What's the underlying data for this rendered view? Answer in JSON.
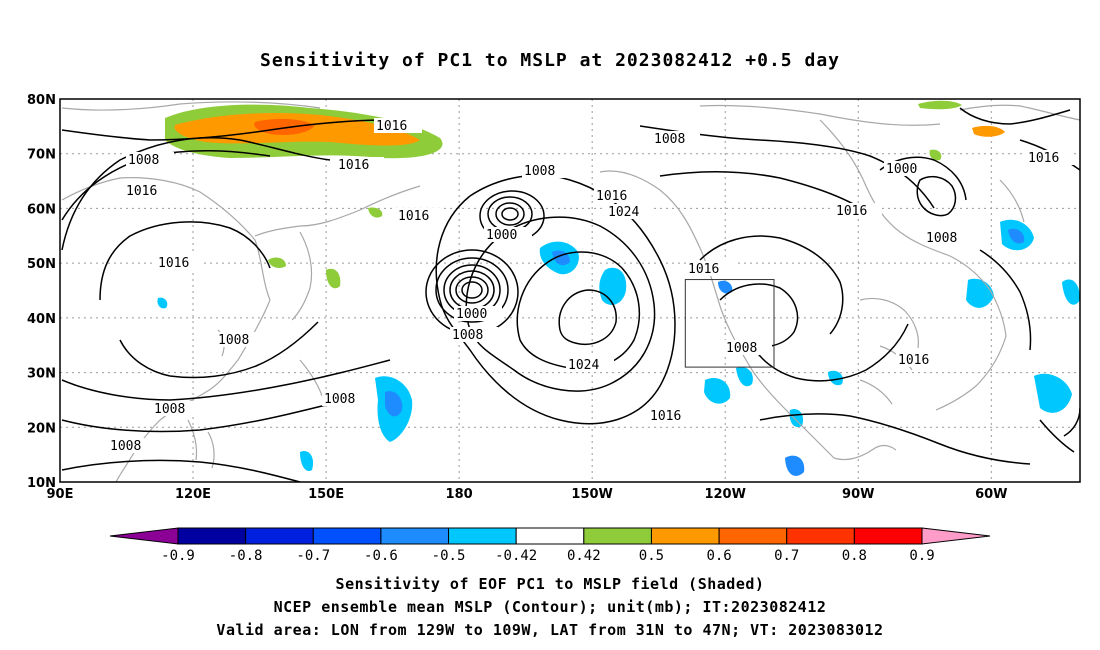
{
  "title": "Sensitivity of PC1 to MSLP at 2023082412 +0.5 day",
  "map": {
    "lat_labels": [
      "80N",
      "70N",
      "60N",
      "50N",
      "40N",
      "30N",
      "20N",
      "10N"
    ],
    "lon_labels": [
      "90E",
      "120E",
      "150E",
      "180",
      "150W",
      "120W",
      "90W",
      "60W"
    ],
    "colors": {
      "contour": "#000000",
      "coast": "#a8a8a8",
      "grid": "#9a9a9a",
      "neg_light": "#00c8ff",
      "neg_mid": "#1e8cff",
      "pos_green": "#8fcc3a",
      "pos_orange": "#ff9900",
      "pos_dark_orange": "#ff6600"
    },
    "contour_labels": {
      "a": "1016",
      "b": "1008",
      "c": "1016",
      "d": "1016",
      "e": "1008",
      "f": "1016",
      "g": "1024",
      "h": "1008",
      "i": "1000",
      "j": "1016",
      "k": "1000",
      "l": "1016",
      "m": "1016",
      "n": "1008",
      "o": "1016",
      "p": "1000",
      "q": "1008",
      "r": "1024",
      "s": "1016",
      "t": "1008",
      "u": "1008",
      "v": "1008",
      "w": "1008",
      "x": "1016",
      "y": "1016",
      "z": "1008"
    },
    "valid_area_box": {
      "lon_from": "129W",
      "lon_to": "109W",
      "lat_from": "31N",
      "lat_to": "47N"
    }
  },
  "colorbar": {
    "labels": [
      "-0.9",
      "-0.8",
      "-0.7",
      "-0.6",
      "-0.5",
      "-0.42",
      "0.42",
      "0.5",
      "0.6",
      "0.7",
      "0.8",
      "0.9"
    ],
    "colors": [
      "#8b0095",
      "#0000a0",
      "#0020e0",
      "#0050ff",
      "#1e8cff",
      "#00c8ff",
      "#ffffff",
      "#8fcc3a",
      "#ff9900",
      "#ff6600",
      "#ff3300",
      "#ff0000",
      "#ff9cc8"
    ]
  },
  "captions": {
    "line1": "Sensitivity of EOF PC1 to MSLP field (Shaded)",
    "line2": "NCEP ensemble mean MSLP (Contour); unit(mb); IT:2023082412",
    "line3": "Valid area: LON from 129W to 109W, LAT from 31N to 47N; VT: 2023083012"
  }
}
